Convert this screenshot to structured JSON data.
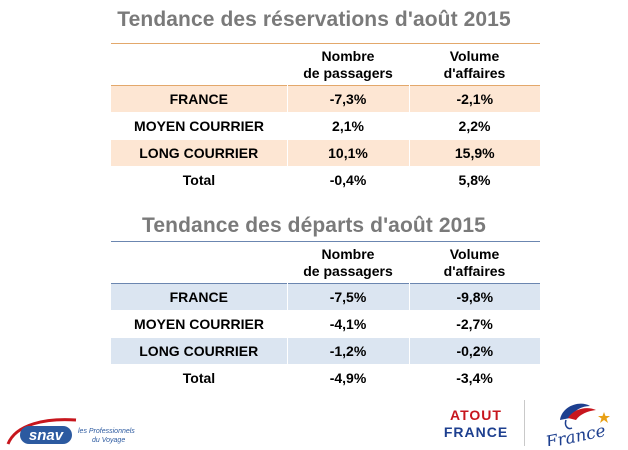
{
  "reservations": {
    "title": "Tendance des réservations d'août 2015",
    "col_headers": [
      {
        "line1": "Nombre",
        "line2": "de passagers"
      },
      {
        "line1": "Volume",
        "line2": "d'affaires"
      }
    ],
    "rows": [
      {
        "label": "FRANCE",
        "passagers": "-7,3%",
        "affaires": "-2,1%"
      },
      {
        "label": "MOYEN COURRIER",
        "passagers": "2,1%",
        "affaires": "2,2%"
      },
      {
        "label": "LONG COURRIER",
        "passagers": "10,1%",
        "affaires": "15,9%"
      },
      {
        "label": "Total",
        "passagers": "-0,4%",
        "affaires": "5,8%"
      }
    ],
    "colors": {
      "border": "#e3a86b",
      "shade": "#fde6d3"
    }
  },
  "departs": {
    "title": "Tendance des départs d'août 2015",
    "col_headers": [
      {
        "line1": "Nombre",
        "line2": "de passagers"
      },
      {
        "line1": "Volume",
        "line2": "d'affaires"
      }
    ],
    "rows": [
      {
        "label": "FRANCE",
        "passagers": "-7,5%",
        "affaires": "-9,8%"
      },
      {
        "label": "MOYEN COURRIER",
        "passagers": "-4,1%",
        "affaires": "-2,7%"
      },
      {
        "label": "LONG COURRIER",
        "passagers": "-1,2%",
        "affaires": "-0,2%"
      },
      {
        "label": "Total",
        "passagers": "-4,9%",
        "affaires": "-3,4%"
      }
    ],
    "colors": {
      "border": "#6b86b0",
      "shade": "#dbe5f1"
    }
  },
  "logos": {
    "snav": {
      "name": "snav",
      "tagline_1": "les Professionnels",
      "tagline_2": "du Voyage"
    },
    "atout_france": {
      "line1": "ATOUT",
      "line2": "FRANCE"
    },
    "france": {
      "wordmark": "France"
    }
  }
}
